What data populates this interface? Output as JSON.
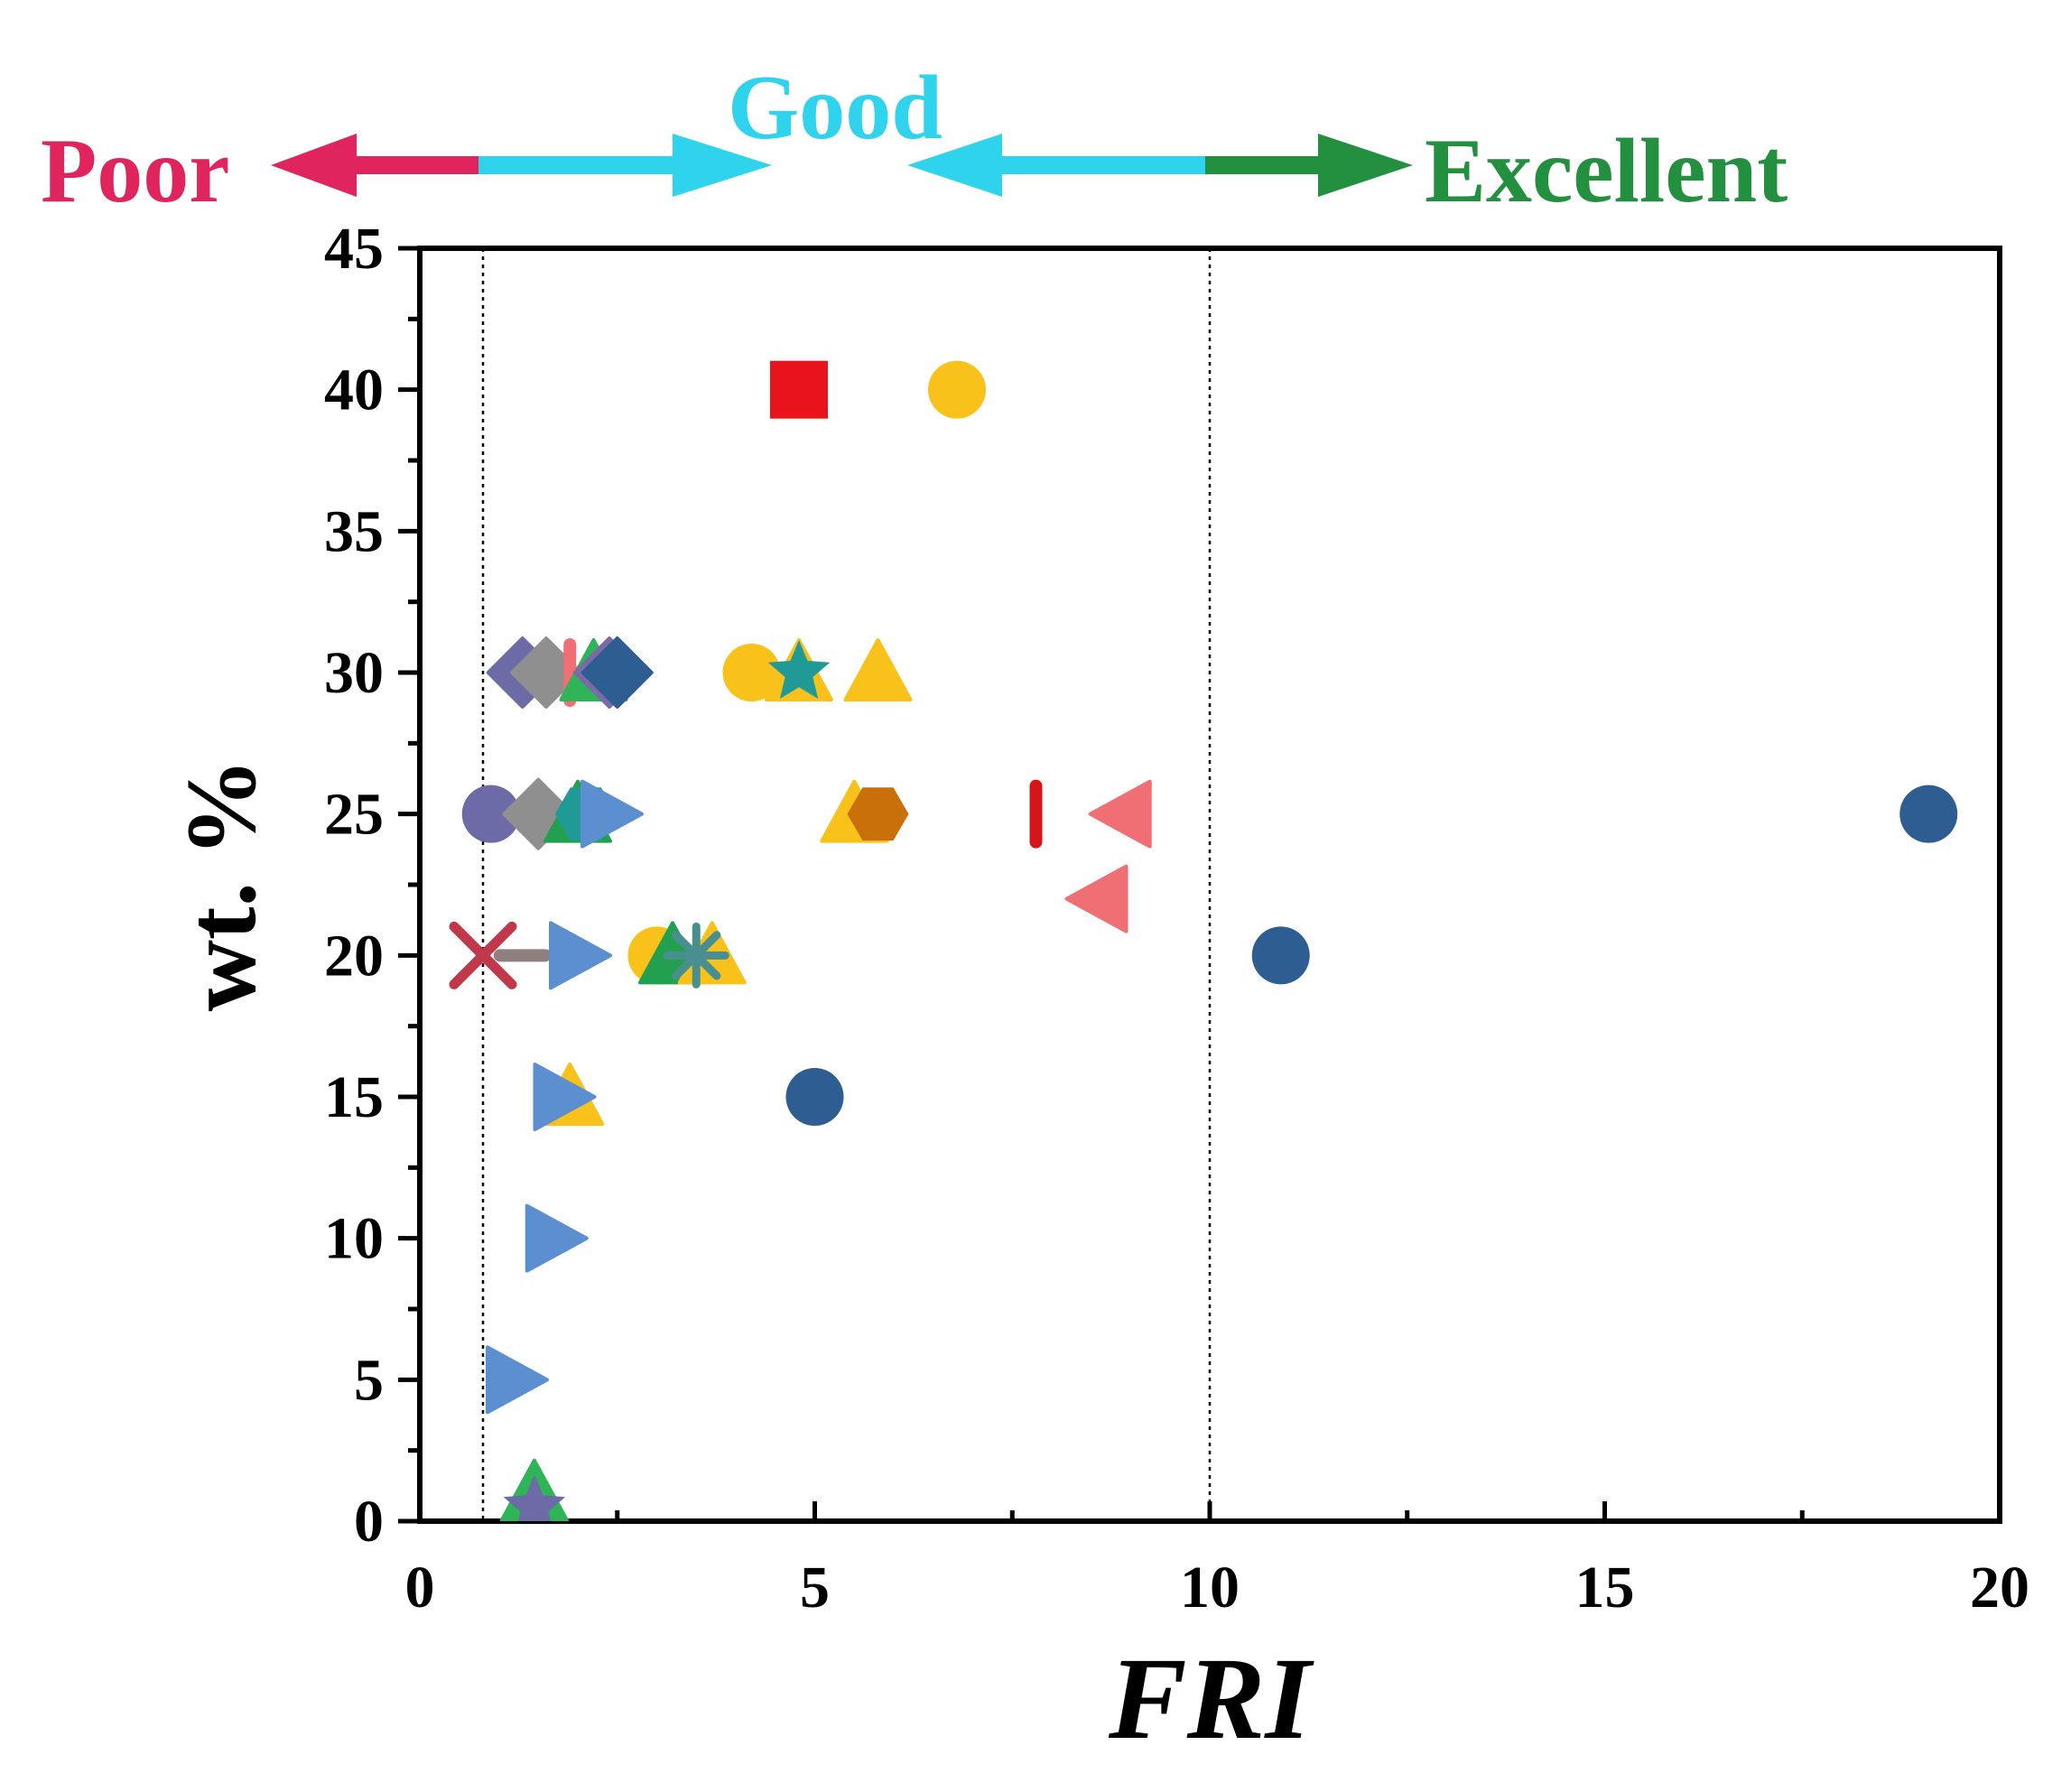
{
  "chart_data": {
    "type": "scatter",
    "xlabel": "FRI",
    "ylabel": "wt. %",
    "xlim": [
      0,
      20
    ],
    "ylim": [
      0,
      45
    ],
    "x_ticks": [
      "0",
      "5",
      "10",
      "15",
      "20"
    ],
    "y_ticks": [
      "0",
      "5",
      "10",
      "15",
      "20",
      "25",
      "30",
      "35",
      "40",
      "45"
    ],
    "reference_lines_x": [
      0.8,
      10
    ],
    "grid": false,
    "scale_labels": {
      "poor": "Poor",
      "good": "Good",
      "excellent": "Excellent"
    },
    "scale_colors": {
      "poor": "#e0245e",
      "good": "#2fd3ec",
      "excellent": "#23903f"
    },
    "points": [
      {
        "x": 4.8,
        "y": 40,
        "marker": "square",
        "color": "#e8131b"
      },
      {
        "x": 6.8,
        "y": 40,
        "marker": "circle",
        "color": "#f8c21b"
      },
      {
        "x": 1.3,
        "y": 30,
        "marker": "diamond",
        "color": "#6d6aa8"
      },
      {
        "x": 1.6,
        "y": 30,
        "marker": "diamond",
        "color": "#8f8f8f"
      },
      {
        "x": 1.9,
        "y": 30,
        "marker": "vbar",
        "color": "#f06f74"
      },
      {
        "x": 2.2,
        "y": 30,
        "marker": "triangle-up",
        "color": "#2fb457"
      },
      {
        "x": 2.4,
        "y": 30,
        "marker": "diamond",
        "color": "#7a6aa8"
      },
      {
        "x": 2.5,
        "y": 30,
        "marker": "diamond",
        "color": "#2e5d91"
      },
      {
        "x": 4.2,
        "y": 30,
        "marker": "circle",
        "color": "#f8c21b"
      },
      {
        "x": 4.8,
        "y": 30,
        "marker": "triangle-up",
        "color": "#f8c21b"
      },
      {
        "x": 4.8,
        "y": 30,
        "marker": "star",
        "color": "#1f9a96"
      },
      {
        "x": 5.8,
        "y": 30,
        "marker": "triangle-up",
        "color": "#f8c21b"
      },
      {
        "x": 0.9,
        "y": 25,
        "marker": "circle",
        "color": "#6d6aa8"
      },
      {
        "x": 1.5,
        "y": 25,
        "marker": "diamond",
        "color": "#8f8f8f"
      },
      {
        "x": 2.0,
        "y": 25,
        "marker": "triangle-up",
        "color": "#23a04f"
      },
      {
        "x": 2.1,
        "y": 25,
        "marker": "hexagon",
        "color": "#1f9a96"
      },
      {
        "x": 2.4,
        "y": 25,
        "marker": "triangle-right",
        "color": "#5b8fd0"
      },
      {
        "x": 5.5,
        "y": 25,
        "marker": "triangle-up",
        "color": "#f8c21b"
      },
      {
        "x": 5.8,
        "y": 25,
        "marker": "hexagon",
        "color": "#c9700b"
      },
      {
        "x": 7.8,
        "y": 25,
        "marker": "vbar",
        "color": "#d8141b"
      },
      {
        "x": 8.9,
        "y": 25,
        "marker": "triangle-left",
        "color": "#f06f74"
      },
      {
        "x": 19.1,
        "y": 25,
        "marker": "circle",
        "color": "#2e5d91"
      },
      {
        "x": 8.6,
        "y": 22,
        "marker": "triangle-left",
        "color": "#f06f74"
      },
      {
        "x": 0.8,
        "y": 20,
        "marker": "x",
        "color": "#c0394b"
      },
      {
        "x": 1.3,
        "y": 20,
        "marker": "minus",
        "color": "#8f7f7f"
      },
      {
        "x": 2.0,
        "y": 20,
        "marker": "triangle-right",
        "color": "#5b8fd0"
      },
      {
        "x": 3.0,
        "y": 20,
        "marker": "circle",
        "color": "#f8c21b"
      },
      {
        "x": 3.2,
        "y": 20,
        "marker": "triangle-up",
        "color": "#23a04f"
      },
      {
        "x": 3.7,
        "y": 20,
        "marker": "triangle-up",
        "color": "#f8c21b"
      },
      {
        "x": 3.5,
        "y": 20,
        "marker": "asterisk",
        "color": "#4a8f8f"
      },
      {
        "x": 10.9,
        "y": 20,
        "marker": "circle",
        "color": "#2e5d91"
      },
      {
        "x": 1.9,
        "y": 15,
        "marker": "triangle-up",
        "color": "#f8c21b"
      },
      {
        "x": 1.8,
        "y": 15,
        "marker": "triangle-right",
        "color": "#5b8fd0"
      },
      {
        "x": 5.0,
        "y": 15,
        "marker": "circle",
        "color": "#2e5d91"
      },
      {
        "x": 1.7,
        "y": 10,
        "marker": "triangle-right",
        "color": "#5b8fd0"
      },
      {
        "x": 1.2,
        "y": 5,
        "marker": "triangle-right",
        "color": "#5b8fd0"
      },
      {
        "x": 1.45,
        "y": 1,
        "marker": "triangle-up",
        "color": "#2fb457"
      },
      {
        "x": 1.45,
        "y": 0.5,
        "marker": "star",
        "color": "#6d6aa8"
      }
    ]
  }
}
